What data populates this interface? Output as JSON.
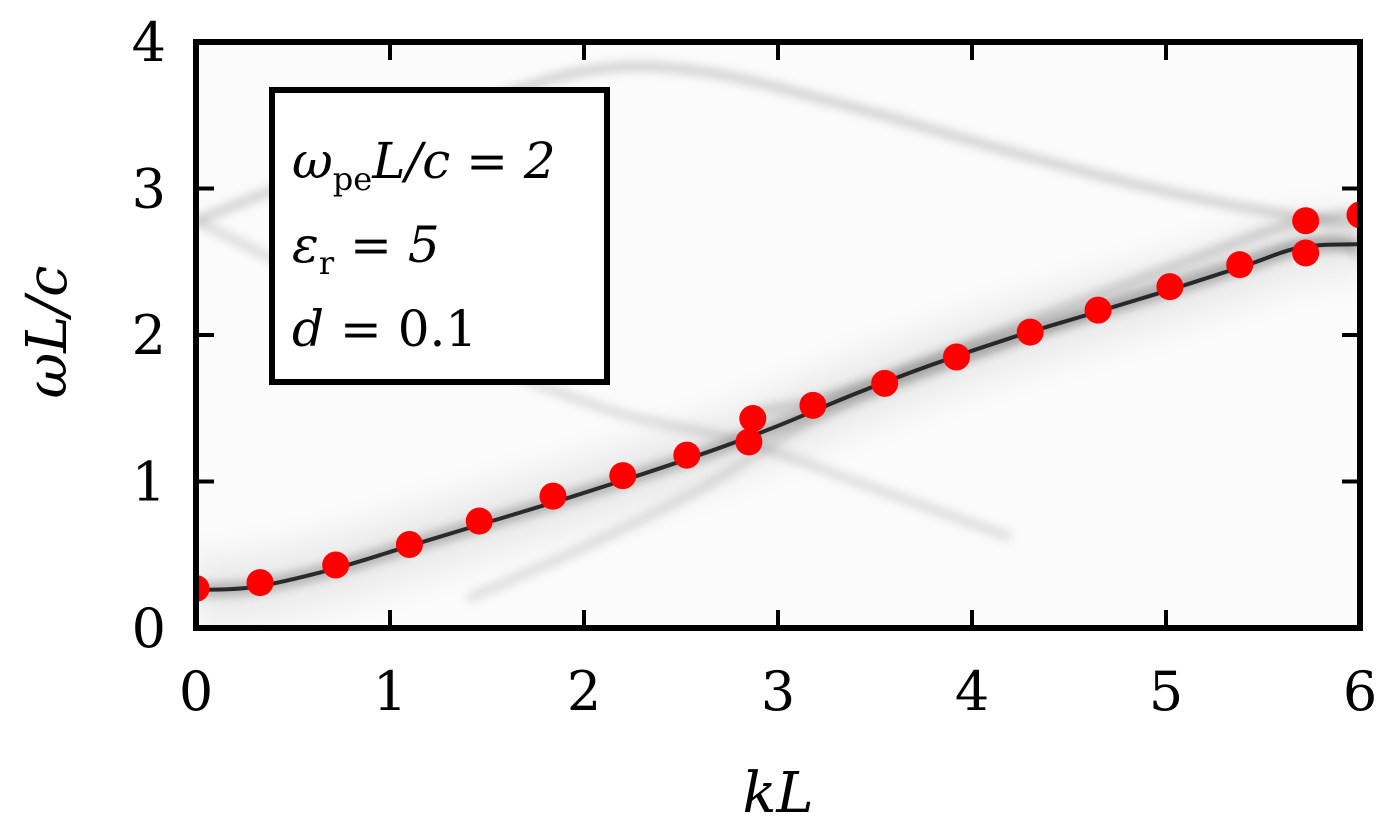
{
  "chart_data": {
    "type": "scatter",
    "title": "",
    "xlabel": "kL",
    "ylabel": "ωL/c",
    "xlim": [
      0,
      6
    ],
    "ylim": [
      0,
      4
    ],
    "xticks": [
      "0",
      "1",
      "2",
      "3",
      "4",
      "5",
      "6"
    ],
    "yticks": [
      "0",
      "1",
      "2",
      "3",
      "4"
    ],
    "annotations": [
      {
        "base": "ω",
        "sub": "pe",
        "rest": "L/c = 2"
      },
      {
        "base": "ε",
        "sub": "r",
        "rest": " = 5"
      },
      {
        "base": "d",
        "sub": "",
        "rest": " = 0.1"
      }
    ],
    "background_spectrum": {
      "colormap": "greys",
      "dominant_band": [
        [
          0,
          0.26
        ],
        [
          0.3,
          0.28
        ],
        [
          0.7,
          0.4
        ],
        [
          1.1,
          0.56
        ],
        [
          1.5,
          0.72
        ],
        [
          1.9,
          0.88
        ],
        [
          2.3,
          1.05
        ],
        [
          2.7,
          1.23
        ],
        [
          3.0,
          1.38
        ],
        [
          3.4,
          1.6
        ],
        [
          3.8,
          1.8
        ],
        [
          4.2,
          1.98
        ],
        [
          4.6,
          2.14
        ],
        [
          5.0,
          2.3
        ],
        [
          5.4,
          2.47
        ],
        [
          5.7,
          2.6
        ],
        [
          6.0,
          2.62
        ]
      ],
      "upper_band": [
        [
          2.87,
          1.47
        ],
        [
          3.2,
          1.56
        ],
        [
          3.6,
          1.74
        ],
        [
          4.0,
          1.95
        ],
        [
          4.6,
          2.25
        ],
        [
          5.2,
          2.55
        ],
        [
          5.6,
          2.74
        ],
        [
          6.0,
          2.84
        ]
      ],
      "faint_bands": [
        [
          [
            0,
            2.78
          ],
          [
            0.6,
            3.1
          ],
          [
            1.3,
            3.5
          ],
          [
            2.0,
            3.8
          ],
          [
            2.6,
            3.8
          ],
          [
            3.4,
            3.55
          ],
          [
            4.2,
            3.25
          ],
          [
            5.0,
            2.98
          ],
          [
            5.8,
            2.78
          ],
          [
            6.0,
            2.76
          ]
        ],
        [
          [
            0,
            2.78
          ],
          [
            0.5,
            2.45
          ],
          [
            1.0,
            2.1
          ],
          [
            1.6,
            1.75
          ],
          [
            2.2,
            1.46
          ],
          [
            2.8,
            1.28
          ],
          [
            3.4,
            1.0
          ],
          [
            4.2,
            0.62
          ]
        ],
        [
          [
            1.4,
            0.2
          ],
          [
            2.0,
            0.55
          ],
          [
            2.6,
            0.95
          ],
          [
            3.0,
            1.28
          ],
          [
            3.4,
            1.55
          ],
          [
            4.2,
            1.95
          ],
          [
            5.0,
            2.35
          ],
          [
            5.8,
            2.65
          ],
          [
            6.0,
            2.52
          ]
        ]
      ]
    },
    "series": [
      {
        "color": "#ff0000",
        "marker": "circle",
        "points": [
          [
            0.0,
            0.27
          ],
          [
            0.33,
            0.31
          ],
          [
            0.72,
            0.43
          ],
          [
            1.1,
            0.57
          ],
          [
            1.46,
            0.73
          ],
          [
            1.84,
            0.9
          ],
          [
            2.2,
            1.04
          ],
          [
            2.53,
            1.18
          ],
          [
            2.85,
            1.27
          ],
          [
            2.87,
            1.43
          ],
          [
            3.18,
            1.52
          ],
          [
            3.55,
            1.67
          ],
          [
            3.92,
            1.85
          ],
          [
            4.3,
            2.02
          ],
          [
            4.65,
            2.17
          ],
          [
            5.02,
            2.33
          ],
          [
            5.38,
            2.48
          ],
          [
            5.72,
            2.56
          ],
          [
            5.72,
            2.78
          ],
          [
            6.0,
            2.82
          ]
        ]
      }
    ]
  }
}
